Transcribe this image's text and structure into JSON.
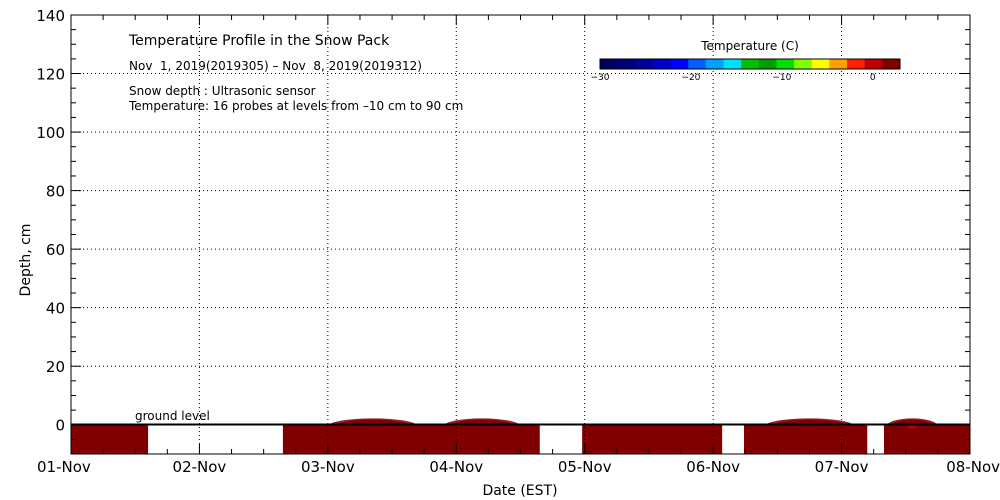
{
  "chart_data": {
    "type": "heatmap",
    "title": "Temperature Profile in the Snow Pack",
    "subtitle": "Nov  1, 2019(2019305) – Nov  8, 2019(2019312)",
    "annotations": [
      "Snow depth : Ultrasonic sensor",
      "Temperature: 16 probes at levels from –10 cm to 90 cm"
    ],
    "ground_label": "ground level",
    "xlabel": "Date (EST)",
    "ylabel": "Depth, cm",
    "x_ticks": [
      "01-Nov",
      "02-Nov",
      "03-Nov",
      "04-Nov",
      "05-Nov",
      "06-Nov",
      "07-Nov",
      "08-Nov"
    ],
    "xlim_days": [
      0,
      7
    ],
    "ylim": [
      -10,
      140
    ],
    "y_ticks": [
      "140",
      "120",
      "100",
      "80",
      "60",
      "40",
      "20",
      "0"
    ],
    "y_tick_values": [
      140,
      120,
      100,
      80,
      60,
      40,
      20,
      0
    ],
    "grid": true,
    "colorbar": {
      "label": "Temperature (C)",
      "range": [
        -30,
        3
      ],
      "tick_labels": [
        "−30",
        "−20",
        "−10",
        "0"
      ],
      "tick_values": [
        -30,
        -20,
        -10,
        0
      ],
      "colors": [
        "#000060",
        "#00007a",
        "#00009a",
        "#0000c8",
        "#0000ff",
        "#0060ff",
        "#00a0ff",
        "#00e0ff",
        "#00c000",
        "#00a000",
        "#00e000",
        "#80ff00",
        "#ffff00",
        "#ffa000",
        "#ff2000",
        "#c00000",
        "#800000"
      ]
    },
    "data_segments": [
      {
        "start": 0.0,
        "end": 0.6
      },
      {
        "start": 1.65,
        "end": 3.65
      },
      {
        "start": 3.98,
        "end": 5.07
      },
      {
        "start": 5.24,
        "end": 6.2
      },
      {
        "start": 6.33,
        "end": 7.0
      }
    ],
    "warm_spots": [
      {
        "center": 2.35,
        "width": 0.35,
        "depth": -2,
        "temp": 2
      },
      {
        "center": 3.2,
        "width": 0.3,
        "depth": -2,
        "temp": 3
      },
      {
        "center": 5.75,
        "width": 0.35,
        "depth": -2,
        "temp": 6
      },
      {
        "center": 6.55,
        "width": 0.2,
        "depth": -2,
        "temp": 1
      }
    ]
  }
}
